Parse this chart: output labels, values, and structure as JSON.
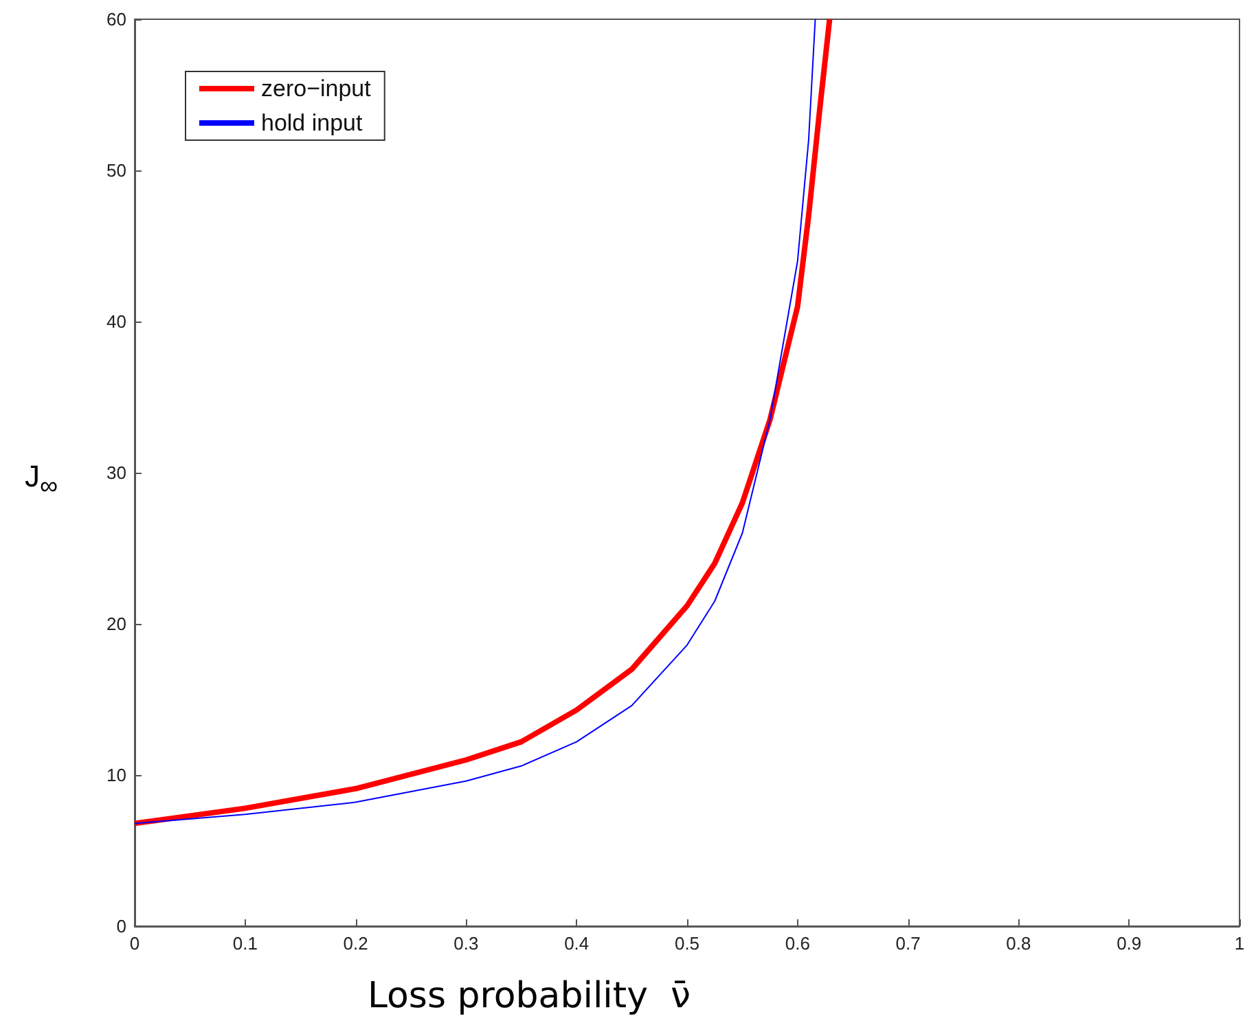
{
  "chart_data": {
    "type": "line",
    "xlabel": "Loss probability  ν̄",
    "ylabel": "J$_{∞}$",
    "xlim": [
      0,
      1
    ],
    "xticks": [
      0,
      0.1,
      0.2,
      0.3,
      0.4,
      0.5,
      0.6,
      0.7,
      0.8,
      0.9,
      1
    ],
    "ylim": [
      0,
      60
    ],
    "yticks": [
      0,
      10,
      20,
      30,
      40,
      50,
      60
    ],
    "grid": false,
    "legend": "top left",
    "marker": "none",
    "series": [
      {
        "name": "zero−input",
        "color": "#ff0000",
        "x": [
          0,
          0.1,
          0.2,
          0.3,
          0.35,
          0.4,
          0.45,
          0.5,
          0.525,
          0.55,
          0.575,
          0.6,
          0.61,
          0.62,
          0.629
        ],
        "values": [
          6.8,
          7.8,
          9.1,
          11.0,
          12.2,
          14.3,
          17.0,
          21.2,
          24,
          28,
          33.5,
          41,
          47,
          54,
          60
        ]
      },
      {
        "name": "hold input",
        "color": "#0000ff",
        "x": [
          0,
          0.1,
          0.2,
          0.3,
          0.35,
          0.4,
          0.45,
          0.5,
          0.525,
          0.55,
          0.575,
          0.6,
          0.61,
          0.616
        ],
        "values": [
          6.8,
          7.4,
          8.2,
          9.6,
          10.6,
          12.2,
          14.6,
          18.6,
          21.5,
          26,
          33.5,
          44,
          52,
          60
        ]
      }
    ]
  }
}
